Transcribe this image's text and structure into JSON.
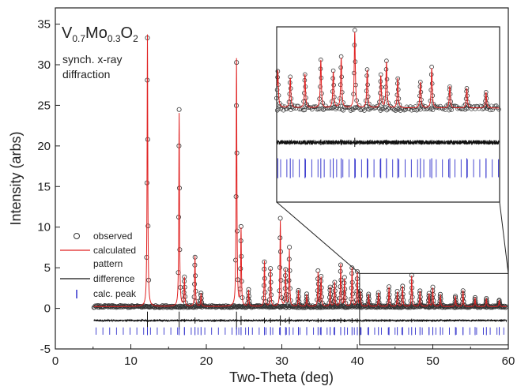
{
  "chart_data": {
    "type": "line",
    "xlabel": "Two-Theta (deg)",
    "ylabel": "Intensity (arbs)",
    "xlim": [
      0,
      60
    ],
    "ylim": [
      -5,
      37
    ],
    "x_ticks": [
      0,
      10,
      20,
      30,
      40,
      50,
      60
    ],
    "y_ticks": [
      -5,
      0,
      5,
      10,
      15,
      20,
      25,
      30,
      35
    ],
    "grid": false,
    "legend_position": "left-center",
    "annotation": {
      "formula_parts": [
        "V",
        "0.7",
        "Mo",
        "0.3",
        "O",
        "2"
      ],
      "line1": "synch. x-ray",
      "line2": "diffraction"
    },
    "legend": [
      {
        "label": "observed",
        "marker": "open-circle"
      },
      {
        "label": "calculated pattern",
        "marker": "line",
        "label_lines": [
          "calculated",
          "pattern"
        ]
      },
      {
        "label": "difference",
        "marker": "line"
      },
      {
        "label": "calc. peak",
        "marker": "tick"
      }
    ],
    "series": [
      {
        "name": "observed",
        "style": "open-circle",
        "color": "#333333"
      },
      {
        "name": "calculated pattern",
        "style": "line",
        "color": "#e02020"
      },
      {
        "name": "difference",
        "style": "line",
        "color": "#111111",
        "offset": -1.5
      },
      {
        "name": "calc. peak",
        "style": "tick",
        "color": "#3333cc",
        "baseline": -2.8
      }
    ],
    "peaks": [
      {
        "x": 12.2,
        "y": 33.5
      },
      {
        "x": 16.4,
        "y": 23.8
      },
      {
        "x": 17.1,
        "y": 3.5
      },
      {
        "x": 18.5,
        "y": 6.2
      },
      {
        "x": 19.3,
        "y": 1.6
      },
      {
        "x": 24.0,
        "y": 30.5
      },
      {
        "x": 24.6,
        "y": 9.5
      },
      {
        "x": 25.6,
        "y": 2.0
      },
      {
        "x": 27.7,
        "y": 5.6
      },
      {
        "x": 28.5,
        "y": 4.6
      },
      {
        "x": 29.8,
        "y": 10.5
      },
      {
        "x": 30.5,
        "y": 4.5
      },
      {
        "x": 31.0,
        "y": 7.0
      },
      {
        "x": 32.2,
        "y": 2.0
      },
      {
        "x": 33.3,
        "y": 1.5
      },
      {
        "x": 34.8,
        "y": 4.2
      },
      {
        "x": 35.2,
        "y": 3.6
      },
      {
        "x": 36.4,
        "y": 2.4
      },
      {
        "x": 37.0,
        "y": 3.0
      },
      {
        "x": 37.8,
        "y": 5.2
      },
      {
        "x": 38.3,
        "y": 3.4
      },
      {
        "x": 39.3,
        "y": 4.8
      },
      {
        "x": 40.0,
        "y": 4.2
      },
      {
        "x": 40.4,
        "y": 1.8
      },
      {
        "x": 41.5,
        "y": 1.5
      },
      {
        "x": 42.8,
        "y": 1.7
      },
      {
        "x": 44.2,
        "y": 2.4
      },
      {
        "x": 45.3,
        "y": 1.8
      },
      {
        "x": 46.0,
        "y": 2.5
      },
      {
        "x": 47.2,
        "y": 3.8
      },
      {
        "x": 48.3,
        "y": 1.9
      },
      {
        "x": 49.5,
        "y": 1.6
      },
      {
        "x": 50.0,
        "y": 2.3
      },
      {
        "x": 51.0,
        "y": 1.5
      },
      {
        "x": 53.0,
        "y": 1.3
      },
      {
        "x": 54.0,
        "y": 2.0
      },
      {
        "x": 55.6,
        "y": 1.1
      },
      {
        "x": 57.1,
        "y": 1.0
      },
      {
        "x": 58.8,
        "y": 0.8
      }
    ],
    "inset": {
      "source_xlim": [
        40.3,
        60
      ],
      "source_ylim": [
        -4.5,
        4.3
      ],
      "description": "magnified view of 40-60 deg region"
    }
  }
}
